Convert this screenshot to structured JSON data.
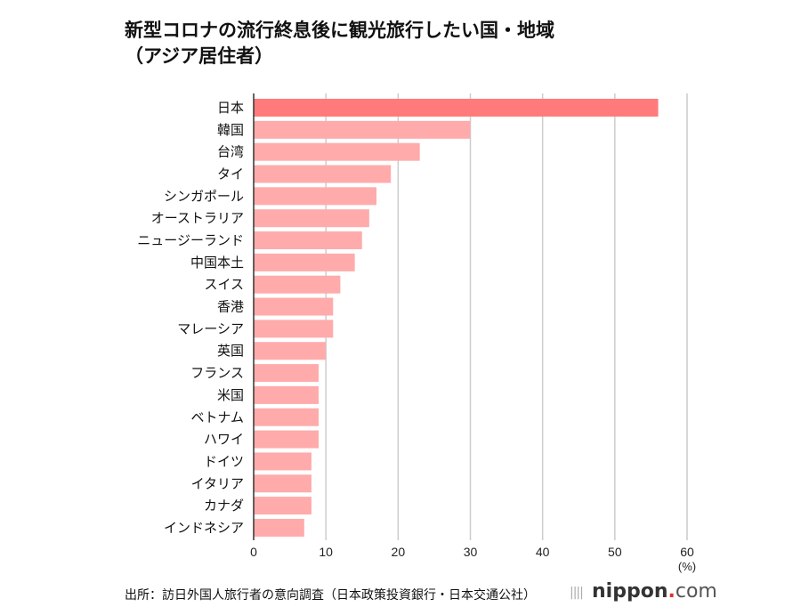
{
  "chart_data": {
    "type": "bar",
    "orientation": "horizontal",
    "title": "新型コロナの流行終息後に観光旅行したい国・地域",
    "subtitle": "（アジア居住者）",
    "xlabel": "(%)",
    "ylabel": "",
    "xlim": [
      0,
      60
    ],
    "xticks": [
      "0",
      "10",
      "20",
      "30",
      "40",
      "50",
      "60"
    ],
    "grid": true,
    "categories": [
      "日本",
      "韓国",
      "台湾",
      "タイ",
      "シンガポール",
      "オーストラリア",
      "ニュージーランド",
      "中国本土",
      "スイス",
      "香港",
      "マレーシア",
      "英国",
      "フランス",
      "米国",
      "ベトナム",
      "ハワイ",
      "ドイツ",
      "イタリア",
      "カナダ",
      "インドネシア"
    ],
    "values": [
      56,
      30,
      23,
      19,
      17,
      16,
      15,
      14,
      12,
      11,
      11,
      10,
      9,
      9,
      9,
      9,
      8,
      8,
      8,
      7
    ],
    "colors": {
      "highlight": "#ff7b7b",
      "bar": "#ffabab",
      "grid": "#cccccc",
      "axis": "#333333"
    }
  },
  "source": "出所：訪日外国人旅行者の意向調査（日本政策投資銀行・日本交通公社）",
  "logo": {
    "name": "nippon",
    "dot": ".",
    "suffix": "com"
  }
}
